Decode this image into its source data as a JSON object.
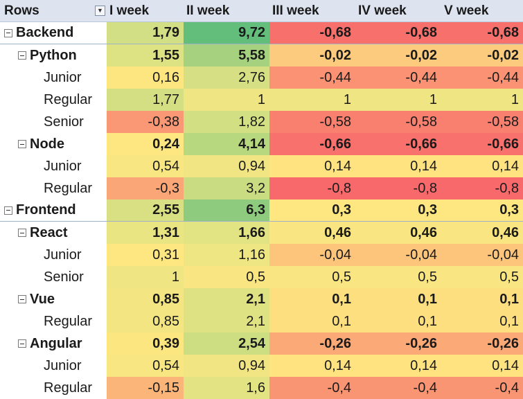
{
  "header": {
    "rows_label": "Rows",
    "filter_icon": "dropdown-arrow-icon",
    "columns": [
      "I week",
      "II week",
      "III week",
      "IV week",
      "V week"
    ]
  },
  "rows": [
    {
      "label": "Backend",
      "level": 0,
      "values": [
        "1,79",
        "9,72",
        "-0,68",
        "-0,68",
        "-0,68"
      ],
      "colors": [
        "#d3df84",
        "#63bd7b",
        "#f8706c",
        "#f8706c",
        "#f8706c"
      ]
    },
    {
      "label": "Python",
      "level": 1,
      "values": [
        "1,55",
        "5,58",
        "-0,02",
        "-0,02",
        "-0,02"
      ],
      "colors": [
        "#dde282",
        "#a6d280",
        "#fdcb7d",
        "#fdcb7d",
        "#fdcb7d"
      ]
    },
    {
      "label": "Junior",
      "level": 2,
      "values": [
        "0,16",
        "2,76",
        "-0,44",
        "-0,44",
        "-0,44"
      ],
      "colors": [
        "#fde57f",
        "#d6df83",
        "#fa9273",
        "#fa9273",
        "#fa9273"
      ]
    },
    {
      "label": "Regular",
      "level": 2,
      "values": [
        "1,77",
        "1",
        "1",
        "1",
        "1"
      ],
      "colors": [
        "#d4df83",
        "#f0e583",
        "#f0e583",
        "#f0e583",
        "#f0e583"
      ]
    },
    {
      "label": "Senior",
      "level": 2,
      "values": [
        "-0,38",
        "1,82",
        "-0,58",
        "-0,58",
        "-0,58"
      ],
      "colors": [
        "#fa9774",
        "#d2df83",
        "#f97f6e",
        "#f97f6e",
        "#f97f6e"
      ]
    },
    {
      "label": "Node",
      "level": 1,
      "values": [
        "0,24",
        "4,14",
        "-0,66",
        "-0,66",
        "-0,66"
      ],
      "colors": [
        "#fee680",
        "#b8d880",
        "#f8716c",
        "#f8716c",
        "#f8716c"
      ]
    },
    {
      "label": "Junior",
      "level": 2,
      "values": [
        "0,54",
        "0,94",
        "0,14",
        "0,14",
        "0,14"
      ],
      "colors": [
        "#f8e682",
        "#f1e583",
        "#fee380",
        "#fee380",
        "#fee380"
      ]
    },
    {
      "label": "Regular",
      "level": 2,
      "values": [
        "-0,3",
        "3,2",
        "-0,8",
        "-0,8",
        "-0,8"
      ],
      "colors": [
        "#fba676",
        "#c9dc82",
        "#f8696b",
        "#f8696b",
        "#f8696b"
      ]
    },
    {
      "label": "Frontend",
      "level": 0,
      "values": [
        "2,55",
        "6,3",
        "0,3",
        "0,3",
        "0,3"
      ],
      "colors": [
        "#d8e083",
        "#8fcb7e",
        "#fee680",
        "#fee680",
        "#fee680"
      ]
    },
    {
      "label": "React",
      "level": 1,
      "values": [
        "1,31",
        "1,66",
        "0,46",
        "0,46",
        "0,46"
      ],
      "colors": [
        "#eae583",
        "#e2e383",
        "#f9e682",
        "#f9e682",
        "#f9e682"
      ]
    },
    {
      "label": "Junior",
      "level": 2,
      "values": [
        "0,31",
        "1,16",
        "-0,04",
        "-0,04",
        "-0,04"
      ],
      "colors": [
        "#fee680",
        "#eee583",
        "#fdc57c",
        "#fdc57c",
        "#fdc57c"
      ]
    },
    {
      "label": "Senior",
      "level": 2,
      "values": [
        "1",
        "0,5",
        "0,5",
        "0,5",
        "0,5"
      ],
      "colors": [
        "#f0e583",
        "#f9e682",
        "#f9e682",
        "#f9e682",
        "#f9e682"
      ]
    },
    {
      "label": "Vue",
      "level": 1,
      "values": [
        "0,85",
        "2,1",
        "0,1",
        "0,1",
        "0,1"
      ],
      "colors": [
        "#f2e582",
        "#dfe283",
        "#fedf80",
        "#fedf80",
        "#fedf80"
      ]
    },
    {
      "label": "Regular",
      "level": 2,
      "values": [
        "0,85",
        "2,1",
        "0,1",
        "0,1",
        "0,1"
      ],
      "colors": [
        "#f2e582",
        "#dfe283",
        "#fedf80",
        "#fedf80",
        "#fedf80"
      ]
    },
    {
      "label": "Angular",
      "level": 1,
      "values": [
        "0,39",
        "2,54",
        "-0,26",
        "-0,26",
        "-0,26"
      ],
      "colors": [
        "#fce680",
        "#cddd82",
        "#fba977",
        "#fba977",
        "#fba977"
      ]
    },
    {
      "label": "Junior",
      "level": 2,
      "values": [
        "0,54",
        "0,94",
        "0,14",
        "0,14",
        "0,14"
      ],
      "colors": [
        "#f8e682",
        "#f1e583",
        "#fee380",
        "#fee380",
        "#fee380"
      ]
    },
    {
      "label": "Regular",
      "level": 2,
      "values": [
        "-0,15",
        "1,6",
        "-0,4",
        "-0,4",
        "-0,4"
      ],
      "colors": [
        "#fcb579",
        "#e3e383",
        "#fa9573",
        "#fa9573",
        "#fa9573"
      ]
    }
  ]
}
